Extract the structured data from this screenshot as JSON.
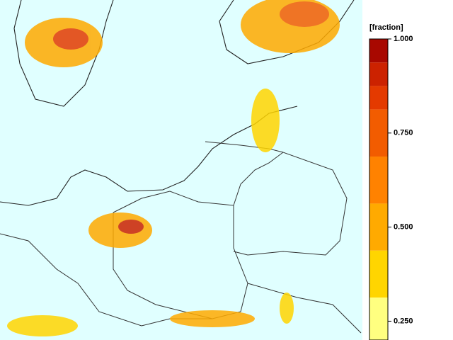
{
  "legend": {
    "unit": "[fraction]",
    "lim": [
      0.2,
      1.0
    ],
    "ticks": [
      {
        "value": 1.0,
        "label": "1.000"
      },
      {
        "value": 0.75,
        "label": "0.750"
      },
      {
        "value": 0.5,
        "label": "0.500"
      },
      {
        "value": 0.25,
        "label": "0.250"
      }
    ],
    "bands": [
      {
        "from": 0.9375,
        "to": 1.0,
        "color": "#a80800"
      },
      {
        "from": 0.875,
        "to": 0.9375,
        "color": "#cc2200"
      },
      {
        "from": 0.8125,
        "to": 0.875,
        "color": "#e43a00"
      },
      {
        "from": 0.6875,
        "to": 0.8125,
        "color": "#f25c00"
      },
      {
        "from": 0.5625,
        "to": 0.6875,
        "color": "#ff8200"
      },
      {
        "from": 0.4375,
        "to": 0.5625,
        "color": "#ffaa00"
      },
      {
        "from": 0.3125,
        "to": 0.4375,
        "color": "#ffd500"
      },
      {
        "from": 0.2,
        "to": 0.3125,
        "color": "#ffff80"
      }
    ]
  }
}
